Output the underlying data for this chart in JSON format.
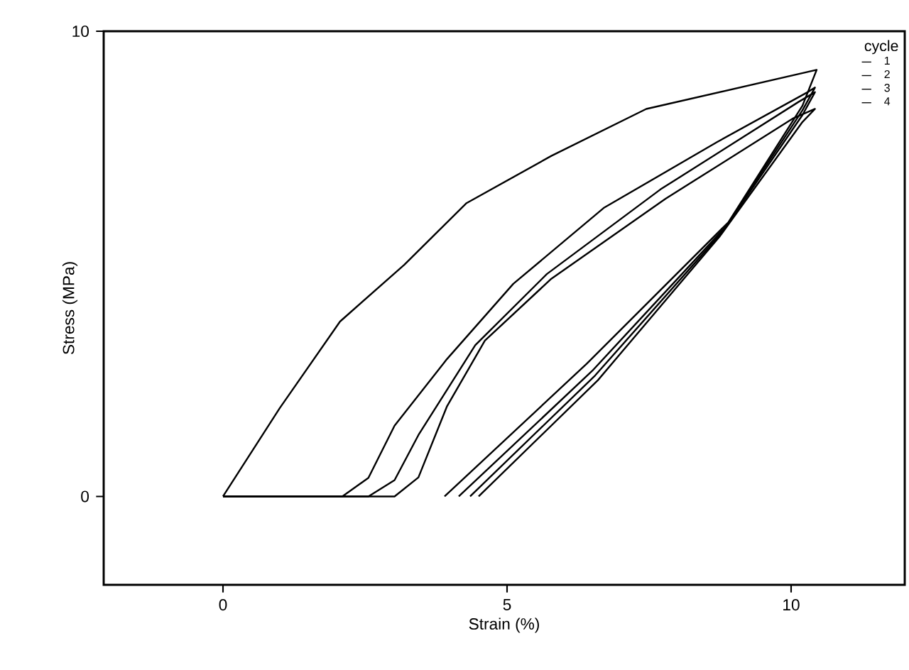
{
  "chart_data": {
    "type": "line",
    "xlabel": "Strain (%)",
    "ylabel": "Stress (MPa)",
    "legend_title": "cycle",
    "legend": "top right",
    "xlim": [
      -2.1,
      12
    ],
    "ylim": [
      -1.9,
      10
    ],
    "xticks": [
      0,
      5,
      10
    ],
    "yticks": [
      0,
      10
    ],
    "series": [
      {
        "name": "1",
        "color": "#000000",
        "x": [
          0,
          1.0,
          2.06,
          3.19,
          4.28,
          5.78,
          7.45,
          10.45,
          10.2,
          8.9,
          6.4,
          3.9
        ],
        "values": [
          0,
          1.9,
          3.76,
          4.98,
          6.3,
          7.32,
          8.33,
          9.17,
          8.4,
          5.9,
          2.85,
          0
        ]
      },
      {
        "name": "2",
        "color": "#000000",
        "x": [
          0,
          2.1,
          2.56,
          3.02,
          3.94,
          5.11,
          6.7,
          8.7,
          10.29,
          10.42,
          10.2,
          8.85,
          6.5,
          4.15
        ],
        "values": [
          0,
          0,
          0.4,
          1.52,
          2.95,
          4.57,
          6.2,
          7.62,
          8.69,
          8.79,
          8.3,
          5.8,
          2.7,
          0
        ]
      },
      {
        "name": "3",
        "color": "#000000",
        "x": [
          0,
          2.56,
          3.02,
          3.44,
          4.44,
          5.7,
          7.7,
          10.13,
          10.42,
          10.2,
          8.8,
          6.55,
          4.35
        ],
        "values": [
          0,
          0,
          0.35,
          1.32,
          3.25,
          4.78,
          6.6,
          8.48,
          8.69,
          8.2,
          5.7,
          2.6,
          0
        ]
      },
      {
        "name": "4",
        "color": "#000000",
        "x": [
          0,
          3.02,
          3.44,
          3.94,
          4.61,
          5.78,
          7.79,
          10.04,
          10.42,
          10.2,
          8.75,
          6.6,
          4.5
        ],
        "values": [
          0,
          0,
          0.41,
          1.93,
          3.35,
          4.68,
          6.4,
          8.13,
          8.33,
          8.05,
          5.6,
          2.5,
          0
        ]
      }
    ]
  }
}
